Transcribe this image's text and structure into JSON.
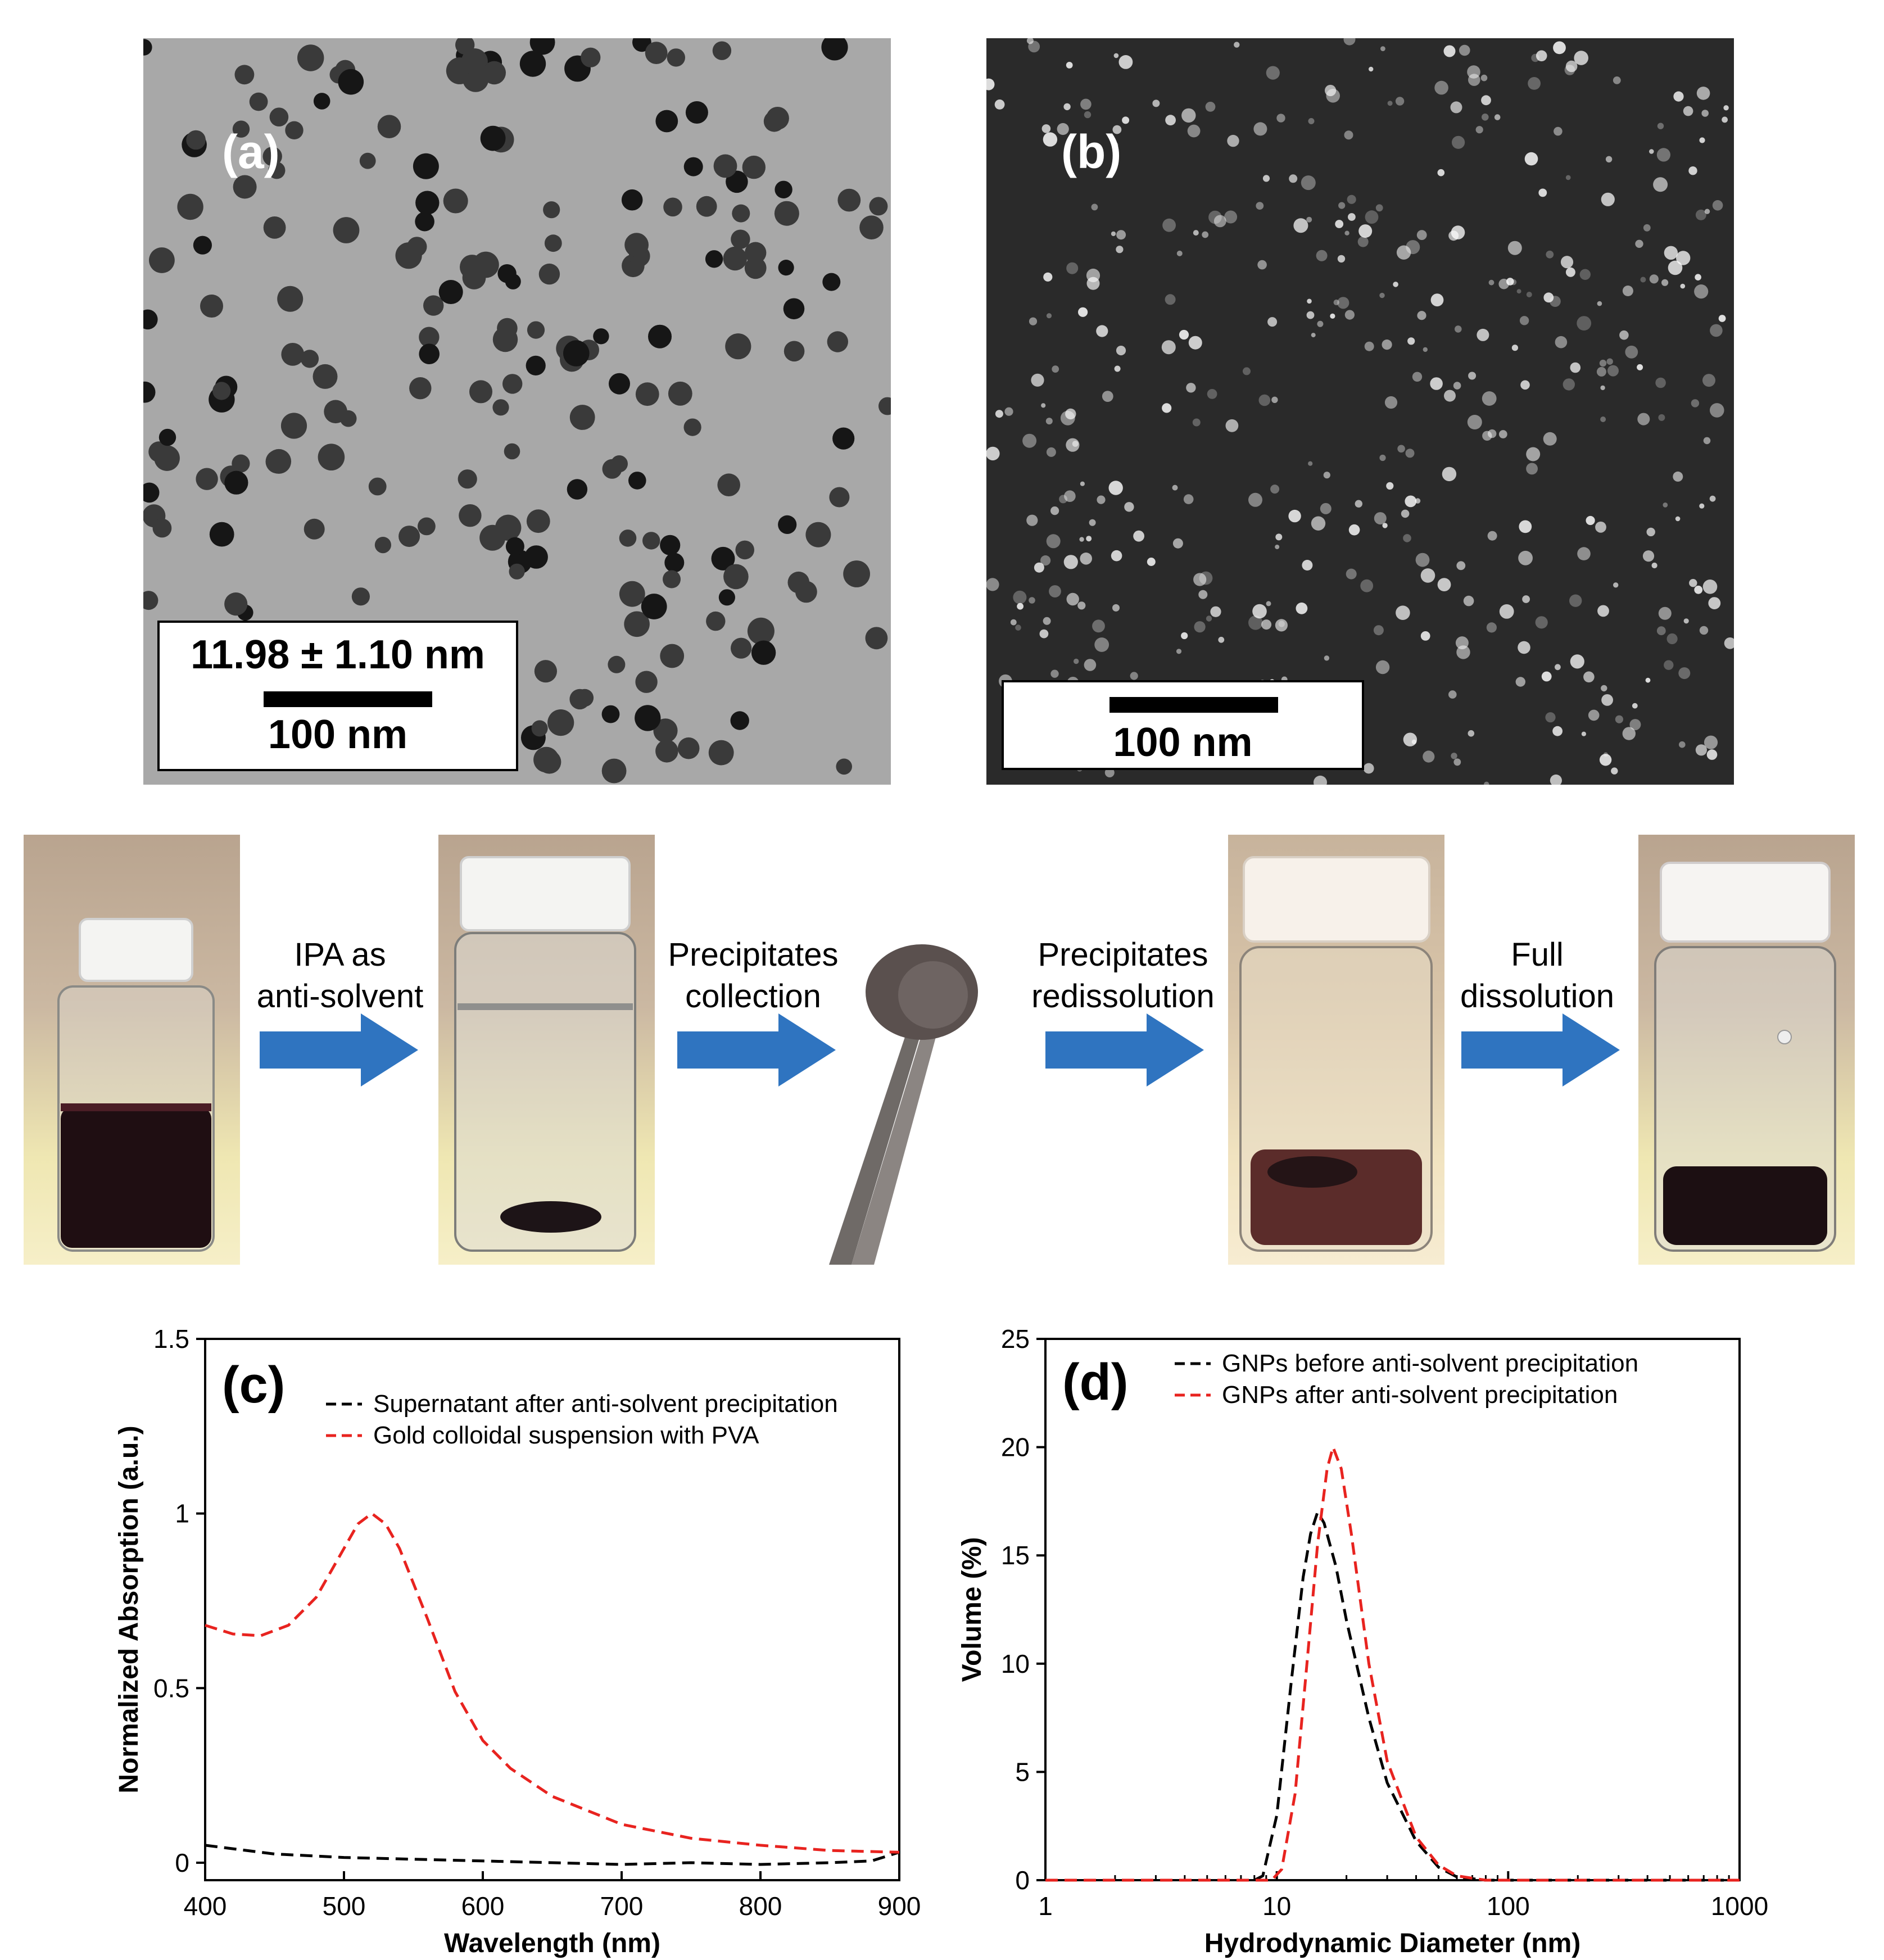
{
  "panels": {
    "a": {
      "label": "(a)",
      "size_text": "11.98 ± 1.10 nm",
      "scale_text": "100 nm"
    },
    "b": {
      "label": "(b)",
      "scale_text": "100 nm"
    }
  },
  "process": {
    "steps": [
      {
        "line1": "IPA as",
        "line2": "anti-solvent"
      },
      {
        "line1": "Precipitates",
        "line2": "collection"
      },
      {
        "line1": "Precipitates",
        "line2": "redissolution"
      },
      {
        "line1": "Full",
        "line2": "dissolution"
      }
    ],
    "arrow_color": "#2f74c0"
  },
  "chart_data": [
    {
      "panel": "(c)",
      "type": "line",
      "xlabel": "Wavelength (nm)",
      "ylabel": "Normalized Absorption (a.u.)",
      "xlim": [
        400,
        900
      ],
      "ylim": [
        -0.05,
        1.5
      ],
      "xticks": [
        "400",
        "500",
        "600",
        "700",
        "800",
        "900"
      ],
      "yticks": [
        "0",
        "0.5",
        "1",
        "1.5"
      ],
      "legend_position": "top-right",
      "series": [
        {
          "name": "Supernatant after anti-solvent precipitation",
          "color": "#000000",
          "style": "dashed",
          "x": [
            400,
            450,
            500,
            550,
            600,
            650,
            700,
            750,
            800,
            850,
            880,
            900
          ],
          "y": [
            0.05,
            0.025,
            0.015,
            0.01,
            0.005,
            0.0,
            -0.005,
            0.0,
            -0.005,
            0.0,
            0.005,
            0.03
          ]
        },
        {
          "name": "Gold colloidal suspension with PVA",
          "color": "#e8231f",
          "style": "dashed",
          "x": [
            400,
            420,
            440,
            460,
            480,
            500,
            510,
            520,
            530,
            540,
            560,
            580,
            600,
            620,
            650,
            700,
            750,
            800,
            850,
            900
          ],
          "y": [
            0.68,
            0.655,
            0.65,
            0.68,
            0.76,
            0.9,
            0.97,
            1.0,
            0.97,
            0.9,
            0.7,
            0.49,
            0.35,
            0.27,
            0.19,
            0.11,
            0.07,
            0.05,
            0.035,
            0.03
          ]
        }
      ]
    },
    {
      "panel": "(d)",
      "type": "line",
      "xlabel": "Hydrodynamic Diameter (nm)",
      "ylabel": "Volume (%)",
      "xscale": "log",
      "xlim": [
        1,
        1000
      ],
      "ylim": [
        0,
        25
      ],
      "xticks": [
        "1",
        "10",
        "100",
        "1000"
      ],
      "yticks": [
        "0",
        "5",
        "10",
        "15",
        "20",
        "25"
      ],
      "legend_position": "top-left",
      "series": [
        {
          "name": "GNPs before anti-solvent precipitation",
          "color": "#000000",
          "style": "dashed",
          "x": [
            1,
            8,
            8.7,
            10,
            11.5,
            13,
            14,
            15,
            16,
            18,
            20,
            25,
            30,
            40,
            50,
            60,
            80,
            100,
            1000
          ],
          "y": [
            0,
            0,
            0.2,
            3,
            9,
            14,
            16,
            17,
            16.5,
            14.5,
            12,
            7.5,
            4.5,
            1.8,
            0.6,
            0.15,
            0,
            0,
            0
          ]
        },
        {
          "name": "GNPs after anti-solvent precipitation",
          "color": "#e8231f",
          "style": "dashed",
          "x": [
            1,
            9.5,
            10.5,
            12,
            13.5,
            15,
            16.5,
            17.5,
            19,
            21,
            25,
            30,
            40,
            50,
            60,
            80,
            100,
            1000
          ],
          "y": [
            0,
            0,
            0.5,
            4,
            10,
            15.5,
            19,
            20,
            19,
            16,
            10,
            5.5,
            2,
            0.7,
            0.2,
            0,
            0,
            0
          ]
        }
      ]
    }
  ]
}
